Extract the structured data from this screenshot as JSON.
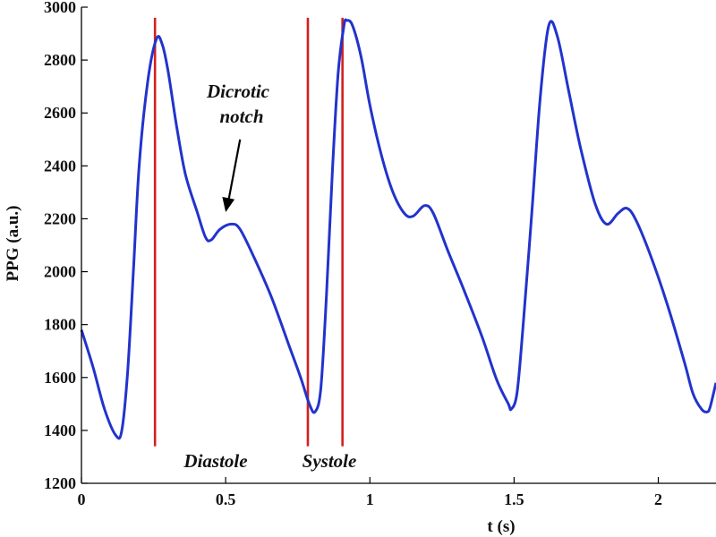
{
  "chart_data": {
    "type": "line",
    "xlabel": "t (s)",
    "ylabel": "PPG (a.u.)",
    "xlim": [
      0,
      2.2
    ],
    "ylim": [
      1200,
      3000
    ],
    "xticks": [
      0,
      0.5,
      1,
      1.5,
      2
    ],
    "xtick_labels": [
      "0",
      "0.5",
      "1",
      "1.5",
      "2"
    ],
    "yticks": [
      1200,
      1400,
      1600,
      1800,
      2000,
      2200,
      2400,
      2600,
      2800,
      3000
    ],
    "ytick_labels": [
      "1200",
      "1400",
      "1600",
      "1800",
      "2000",
      "2200",
      "2400",
      "2600",
      "2800",
      "3000"
    ],
    "grid": false,
    "series": [
      {
        "color": "#2233cc",
        "x": [
          0,
          0.04,
          0.08,
          0.12,
          0.14,
          0.16,
          0.18,
          0.2,
          0.23,
          0.26,
          0.28,
          0.3,
          0.33,
          0.36,
          0.4,
          0.43,
          0.45,
          0.48,
          0.52,
          0.55,
          0.6,
          0.66,
          0.72,
          0.76,
          0.79,
          0.81,
          0.83,
          0.85,
          0.87,
          0.89,
          0.91,
          0.92,
          0.94,
          0.97,
          1.0,
          1.04,
          1.08,
          1.12,
          1.15,
          1.19,
          1.22,
          1.27,
          1.33,
          1.39,
          1.44,
          1.48,
          1.49,
          1.51,
          1.53,
          1.56,
          1.59,
          1.62,
          1.65,
          1.69,
          1.73,
          1.78,
          1.82,
          1.86,
          1.89,
          1.92,
          1.97,
          2.03,
          2.09,
          2.12,
          2.15,
          2.17,
          2.18,
          2.2
        ],
        "y": [
          1780,
          1640,
          1480,
          1380,
          1400,
          1620,
          2000,
          2400,
          2720,
          2880,
          2860,
          2760,
          2550,
          2370,
          2230,
          2130,
          2120,
          2160,
          2180,
          2160,
          2050,
          1900,
          1720,
          1600,
          1500,
          1470,
          1560,
          1920,
          2380,
          2750,
          2930,
          2950,
          2930,
          2810,
          2630,
          2440,
          2300,
          2220,
          2210,
          2250,
          2220,
          2080,
          1920,
          1750,
          1590,
          1500,
          1480,
          1540,
          1780,
          2200,
          2650,
          2930,
          2890,
          2680,
          2470,
          2260,
          2180,
          2220,
          2240,
          2200,
          2070,
          1880,
          1660,
          1540,
          1480,
          1470,
          1490,
          1580
        ]
      }
    ],
    "vlines": [
      {
        "x": 0.255,
        "color": "#d42020"
      },
      {
        "x": 0.785,
        "color": "#d42020"
      },
      {
        "x": 0.905,
        "color": "#d42020"
      }
    ],
    "annotations": {
      "dicrotic_line1": "Dicrotic",
      "dicrotic_line2": "notch",
      "diastole": "Diastole",
      "systole": "Systole"
    },
    "arrow_from": [
      0.55,
      2500
    ],
    "arrow_to": [
      0.5,
      2225
    ]
  }
}
